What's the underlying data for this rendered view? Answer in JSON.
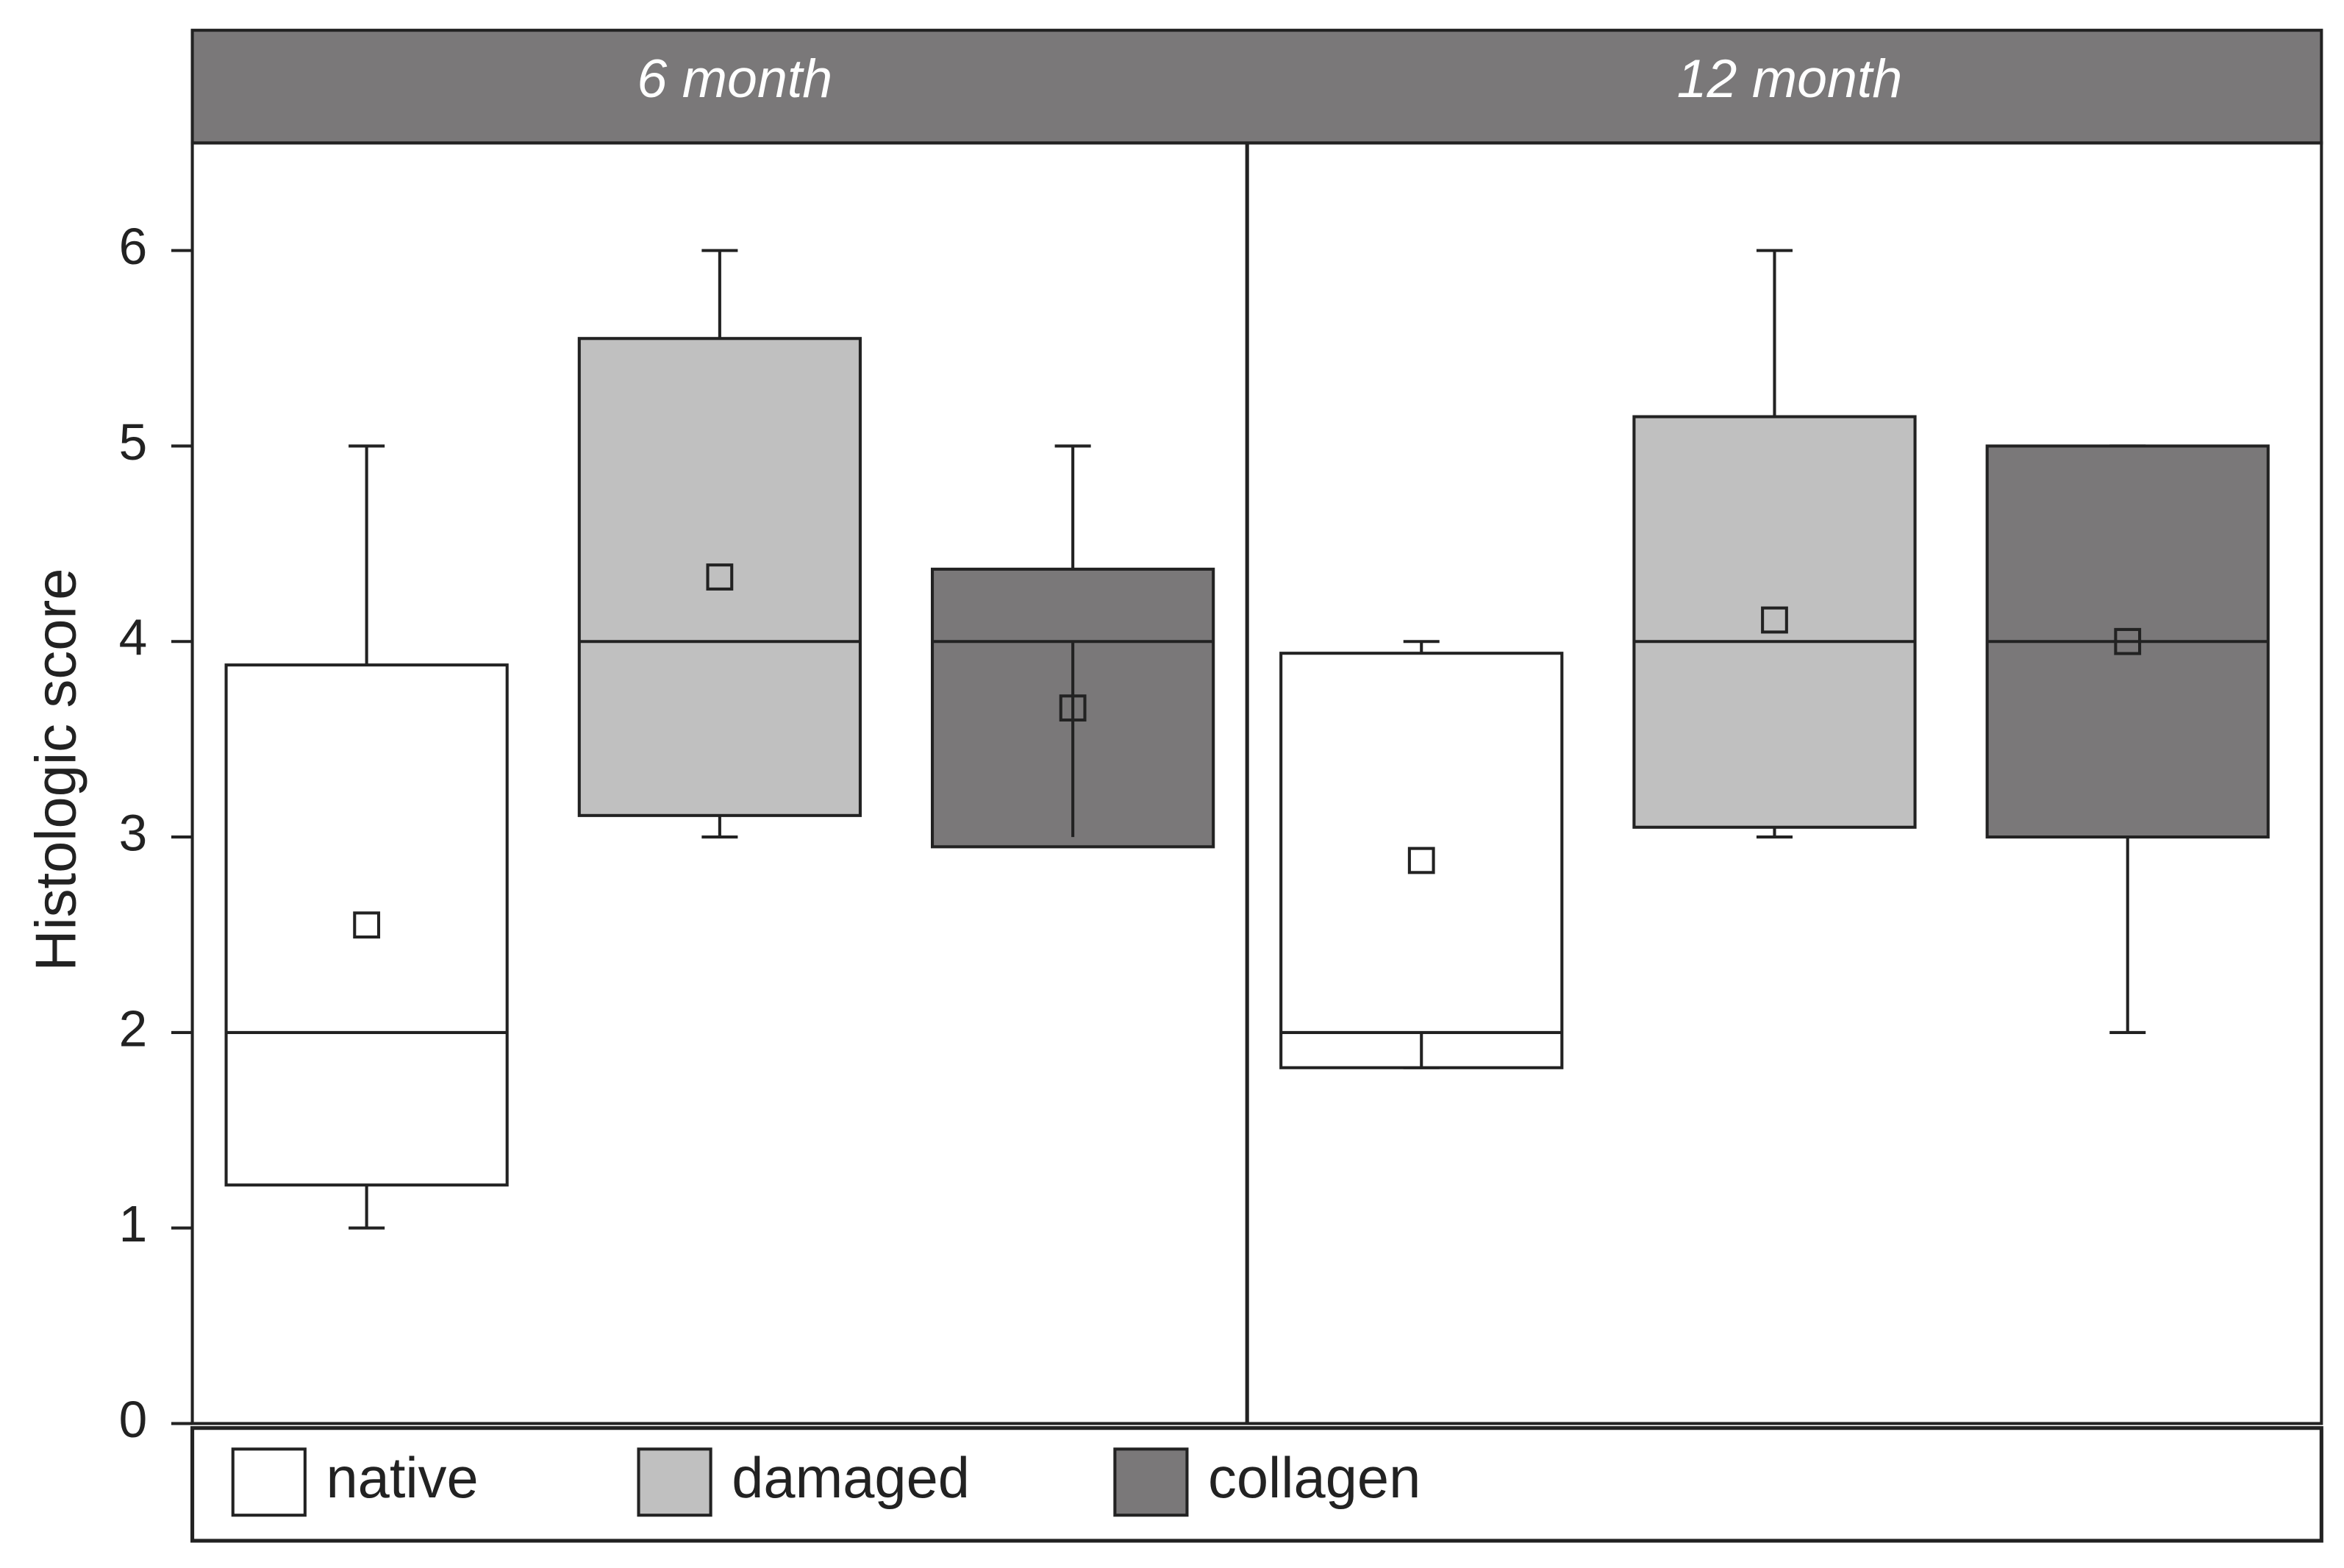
{
  "chart_data": {
    "type": "box",
    "ylabel": "Histologic score",
    "categories": [
      "6 month",
      "12 month"
    ],
    "ylim": [
      0,
      6.55
    ],
    "yticks": [
      0,
      1,
      2,
      3,
      4,
      5,
      6
    ],
    "series": [
      {
        "name": "native",
        "color": "#ffffff",
        "whisker_low": [
          1,
          1.82
        ],
        "q1": [
          1.22,
          1.82
        ],
        "median": [
          2,
          2
        ],
        "q3": [
          3.88,
          3.94
        ],
        "whisker_high": [
          5,
          4
        ],
        "mean": [
          2.55,
          2.88
        ]
      },
      {
        "name": "damaged",
        "color": "#c0c0c0",
        "whisker_low": [
          3,
          3
        ],
        "q1": [
          3.11,
          3.05
        ],
        "median": [
          4,
          4
        ],
        "q3": [
          5.55,
          5.15
        ],
        "whisker_high": [
          6,
          6
        ],
        "mean": [
          4.33,
          4.11
        ]
      },
      {
        "name": "collagen",
        "color": "#7a7879",
        "whisker_low": [
          3,
          2
        ],
        "q1": [
          2.95,
          3
        ],
        "median": [
          4,
          4
        ],
        "q3": [
          4.37,
          5
        ],
        "whisker_high": [
          5,
          5
        ],
        "mean": [
          3.66,
          4
        ]
      }
    ]
  }
}
